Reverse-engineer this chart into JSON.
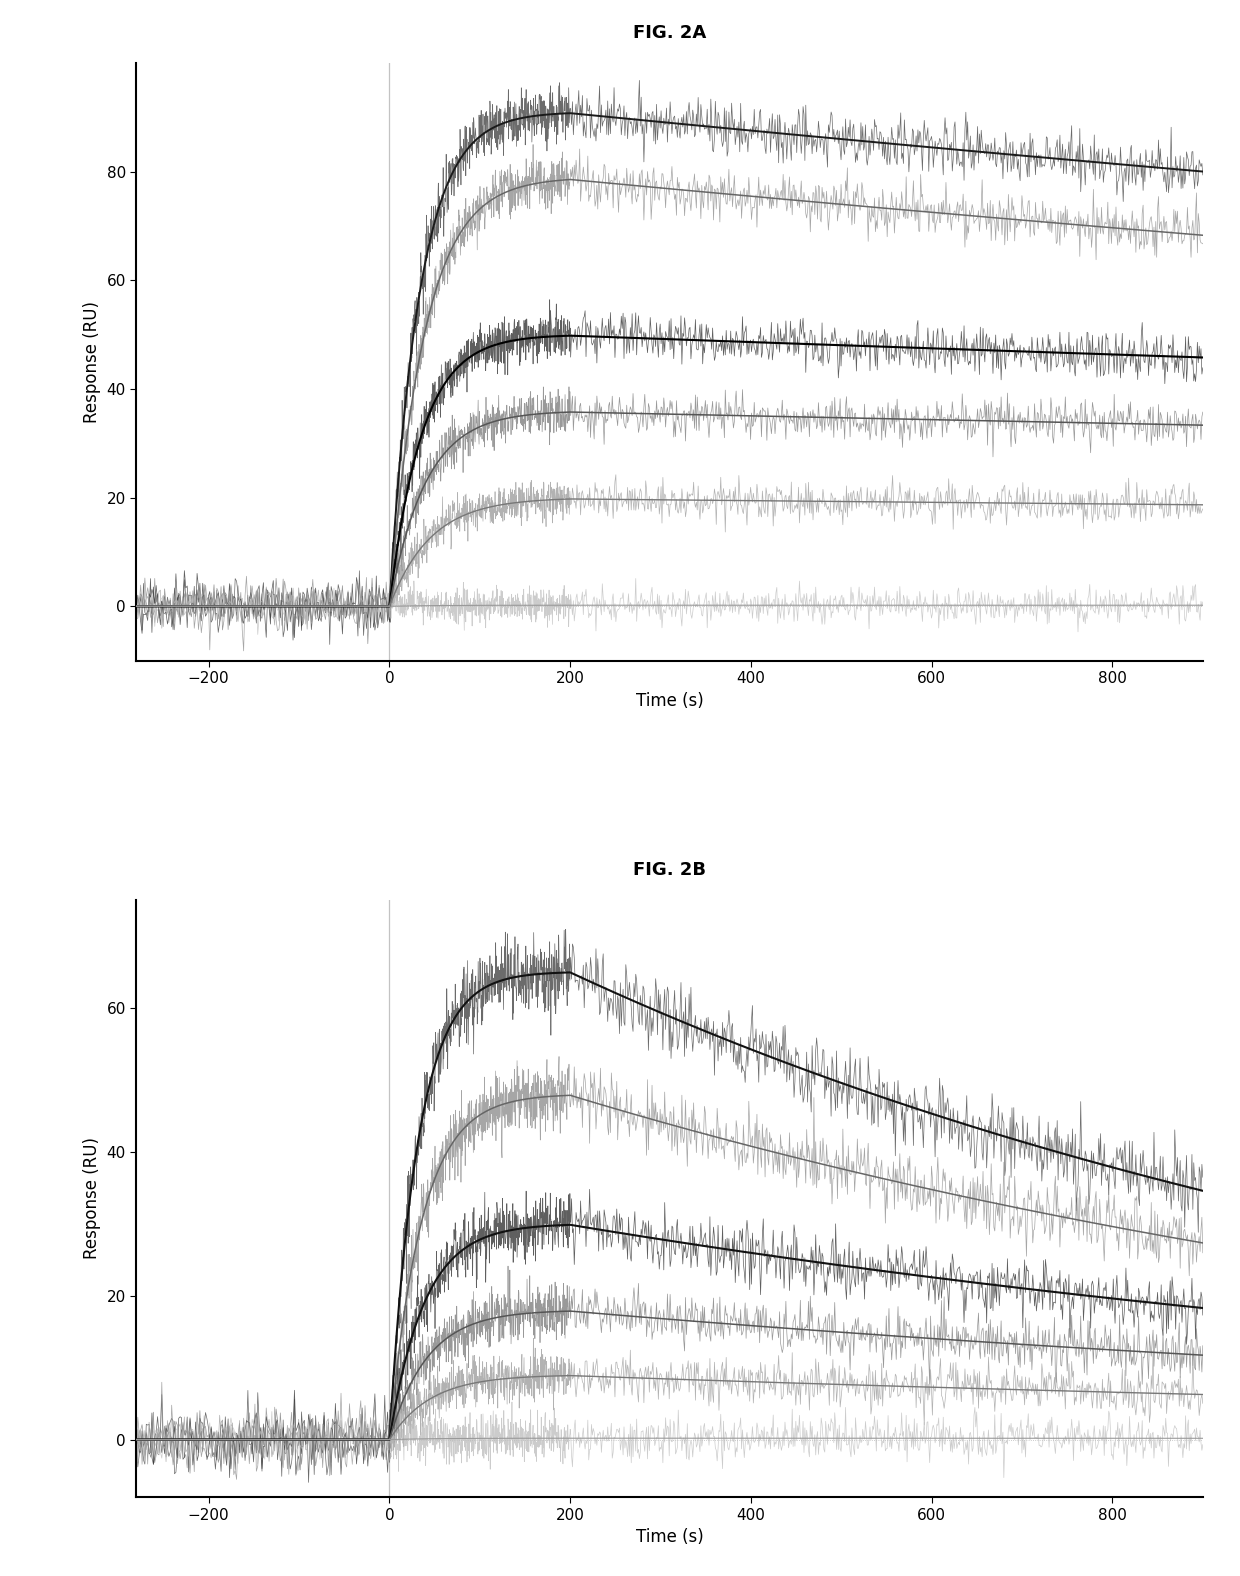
{
  "fig_title_a": "FIG. 2A",
  "fig_title_b": "FIG. 2B",
  "xlabel": "Time (s)",
  "ylabel": "Response (RU)",
  "xlim": [
    -280,
    900
  ],
  "xticks": [
    -200,
    0,
    200,
    400,
    600,
    800
  ],
  "panel_a": {
    "ylim": [
      -10,
      100
    ],
    "yticks": [
      0,
      20,
      40,
      60,
      80
    ],
    "curves": [
      {
        "plateau": 91,
        "k_on": 0.03,
        "end_assoc": 200,
        "k_off": 0.00018,
        "noise": 2.5,
        "color": "#3a3a3a",
        "smooth_color": "#1a1a1a",
        "lw": 1.4
      },
      {
        "plateau": 79,
        "k_on": 0.026,
        "end_assoc": 200,
        "k_off": 0.0002,
        "noise": 2.3,
        "color": "#888888",
        "smooth_color": "#666666",
        "lw": 1.1
      },
      {
        "plateau": 50,
        "k_on": 0.028,
        "end_assoc": 200,
        "k_off": 0.00012,
        "noise": 2.2,
        "color": "#2a2a2a",
        "smooth_color": "#000000",
        "lw": 1.5
      },
      {
        "plateau": 36,
        "k_on": 0.025,
        "end_assoc": 200,
        "k_off": 0.0001,
        "noise": 2.0,
        "color": "#777777",
        "smooth_color": "#555555",
        "lw": 1.1
      },
      {
        "plateau": 20,
        "k_on": 0.022,
        "end_assoc": 200,
        "k_off": 8e-05,
        "noise": 1.8,
        "color": "#999999",
        "smooth_color": "#777777",
        "lw": 1.0
      },
      {
        "plateau": 0.2,
        "k_on": 0.02,
        "end_assoc": 200,
        "k_off": 2e-05,
        "noise": 1.5,
        "color": "#bbbbbb",
        "smooth_color": "#999999",
        "lw": 0.8
      }
    ]
  },
  "panel_b": {
    "ylim": [
      -8,
      75
    ],
    "yticks": [
      0,
      20,
      40,
      60
    ],
    "curves": [
      {
        "plateau": 65,
        "k_on": 0.032,
        "end_assoc": 200,
        "k_off": 0.0009,
        "noise": 2.5,
        "color": "#3a3a3a",
        "smooth_color": "#111111",
        "lw": 1.5
      },
      {
        "plateau": 48,
        "k_on": 0.028,
        "end_assoc": 200,
        "k_off": 0.0008,
        "noise": 2.3,
        "color": "#888888",
        "smooth_color": "#666666",
        "lw": 1.1
      },
      {
        "plateau": 30,
        "k_on": 0.026,
        "end_assoc": 200,
        "k_off": 0.0007,
        "noise": 2.0,
        "color": "#2a2a2a",
        "smooth_color": "#111111",
        "lw": 1.5
      },
      {
        "plateau": 18,
        "k_on": 0.024,
        "end_assoc": 200,
        "k_off": 0.0006,
        "noise": 1.8,
        "color": "#777777",
        "smooth_color": "#555555",
        "lw": 1.1
      },
      {
        "plateau": 9,
        "k_on": 0.022,
        "end_assoc": 200,
        "k_off": 0.0005,
        "noise": 1.6,
        "color": "#999999",
        "smooth_color": "#777777",
        "lw": 1.0
      },
      {
        "plateau": 0.2,
        "k_on": 0.02,
        "end_assoc": 200,
        "k_off": 0.0001,
        "noise": 1.5,
        "color": "#bbbbbb",
        "smooth_color": "#999999",
        "lw": 0.8
      }
    ]
  },
  "vline_color": "#aaaaaa",
  "hline_color": "#aaaaaa",
  "background_color": "#ffffff",
  "title_fontsize": 13,
  "label_fontsize": 12,
  "tick_fontsize": 11
}
